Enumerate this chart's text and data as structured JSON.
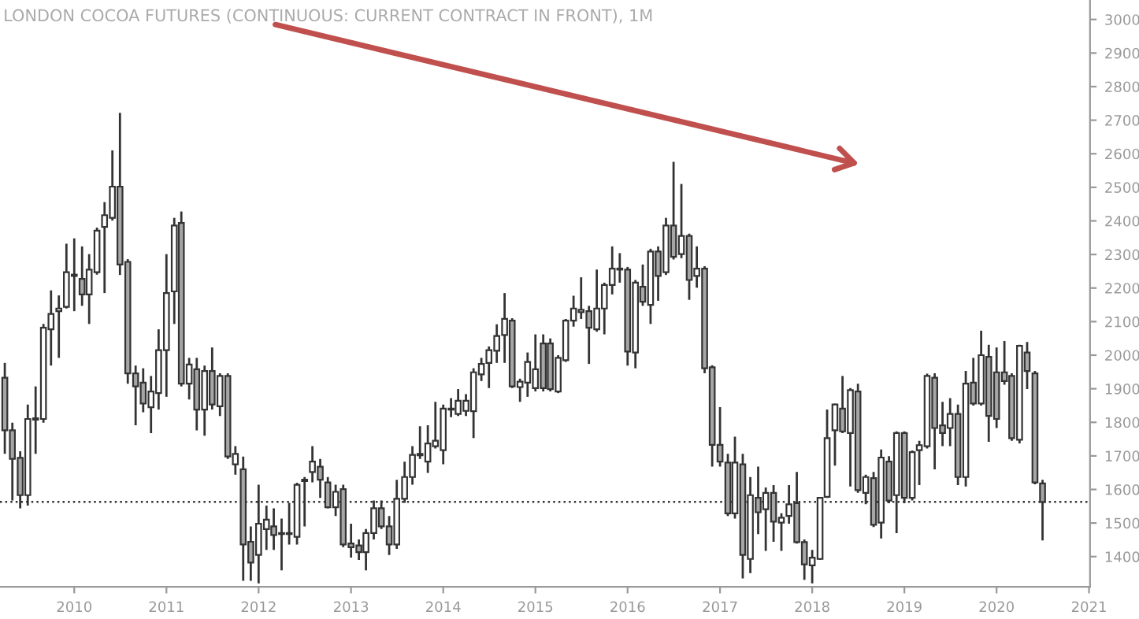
{
  "chart_data": {
    "type": "candlestick",
    "title": "LONDON COCOA FUTURES (CONTINUOUS: CURRENT CONTRACT IN FRONT), 1M",
    "x": [
      "2009-04",
      "2009-05",
      "2009-06",
      "2009-07",
      "2009-08",
      "2009-09",
      "2009-10",
      "2009-11",
      "2009-12",
      "2010-01",
      "2010-02",
      "2010-03",
      "2010-04",
      "2010-05",
      "2010-06",
      "2010-07",
      "2010-08",
      "2010-09",
      "2010-10",
      "2010-11",
      "2010-12",
      "2011-01",
      "2011-02",
      "2011-03",
      "2011-04",
      "2011-05",
      "2011-06",
      "2011-07",
      "2011-08",
      "2011-09",
      "2011-10",
      "2011-11",
      "2011-12",
      "2012-01",
      "2012-02",
      "2012-03",
      "2012-04",
      "2012-05",
      "2012-06",
      "2012-07",
      "2012-08",
      "2012-09",
      "2012-10",
      "2012-11",
      "2012-12",
      "2013-01",
      "2013-02",
      "2013-03",
      "2013-04",
      "2013-05",
      "2013-06",
      "2013-07",
      "2013-08",
      "2013-09",
      "2013-10",
      "2013-11",
      "2013-12",
      "2014-01",
      "2014-02",
      "2014-03",
      "2014-04",
      "2014-05",
      "2014-06",
      "2014-07",
      "2014-08",
      "2014-09",
      "2014-10",
      "2014-11",
      "2014-12",
      "2015-01",
      "2015-02",
      "2015-03",
      "2015-04",
      "2015-05",
      "2015-06",
      "2015-07",
      "2015-08",
      "2015-09",
      "2015-10",
      "2015-11",
      "2015-12",
      "2016-01",
      "2016-02",
      "2016-03",
      "2016-04",
      "2016-05",
      "2016-06",
      "2016-07",
      "2016-08",
      "2016-09",
      "2016-10",
      "2016-11",
      "2016-12",
      "2017-01",
      "2017-02",
      "2017-03",
      "2017-04",
      "2017-05",
      "2017-06",
      "2017-07",
      "2017-08",
      "2017-09",
      "2017-10",
      "2017-11",
      "2017-12",
      "2018-01",
      "2018-02",
      "2018-03",
      "2018-04",
      "2018-05",
      "2018-06",
      "2018-07",
      "2018-08",
      "2018-09",
      "2018-10",
      "2018-11",
      "2018-12",
      "2019-01",
      "2019-02",
      "2019-03",
      "2019-04",
      "2019-05",
      "2019-06",
      "2019-07",
      "2019-08",
      "2019-09",
      "2019-10",
      "2019-11",
      "2019-12",
      "2020-01",
      "2020-02",
      "2020-03",
      "2020-04",
      "2020-05",
      "2020-06",
      "2020-07"
    ],
    "ohlc": [
      [
        1933,
        1977,
        1706,
        1776
      ],
      [
        1776,
        1799,
        1567,
        1691
      ],
      [
        1694,
        1714,
        1544,
        1583
      ],
      [
        1583,
        1853,
        1552,
        1810
      ],
      [
        1808,
        1907,
        1706,
        1812
      ],
      [
        1810,
        2093,
        1799,
        2082
      ],
      [
        2077,
        2193,
        1969,
        2123
      ],
      [
        2131,
        2178,
        1992,
        2139
      ],
      [
        2144,
        2332,
        2139,
        2247
      ],
      [
        2240,
        2348,
        2131,
        2236
      ],
      [
        2227,
        2324,
        2147,
        2181
      ],
      [
        2181,
        2301,
        2093,
        2255
      ],
      [
        2247,
        2380,
        2240,
        2371
      ],
      [
        2382,
        2456,
        2185,
        2417
      ],
      [
        2409,
        2610,
        2401,
        2502
      ],
      [
        2502,
        2722,
        2239,
        2270
      ],
      [
        2278,
        2286,
        1915,
        1946
      ],
      [
        1946,
        1969,
        1791,
        1907
      ],
      [
        1918,
        1961,
        1830,
        1856
      ],
      [
        1845,
        1938,
        1768,
        1892
      ],
      [
        1887,
        2077,
        1838,
        2015
      ],
      [
        2015,
        2301,
        1876,
        2185
      ],
      [
        2190,
        2409,
        2093,
        2386
      ],
      [
        2394,
        2428,
        1907,
        1915
      ],
      [
        1915,
        1992,
        1868,
        1972
      ],
      [
        1958,
        1992,
        1776,
        1838
      ],
      [
        1838,
        1969,
        1760,
        1953
      ],
      [
        1953,
        2023,
        1838,
        1853
      ],
      [
        1848,
        1946,
        1819,
        1938
      ],
      [
        1938,
        1946,
        1691,
        1698
      ],
      [
        1675,
        1729,
        1644,
        1706
      ],
      [
        1660,
        1698,
        1328,
        1436
      ],
      [
        1444,
        1490,
        1328,
        1382
      ],
      [
        1405,
        1614,
        1320,
        1498
      ],
      [
        1482,
        1552,
        1420,
        1510
      ],
      [
        1490,
        1544,
        1420,
        1464
      ],
      [
        1470,
        1513,
        1359,
        1467
      ],
      [
        1467,
        1560,
        1436,
        1470
      ],
      [
        1459,
        1620,
        1436,
        1614
      ],
      [
        1625,
        1637,
        1490,
        1629
      ],
      [
        1652,
        1729,
        1621,
        1683
      ],
      [
        1668,
        1691,
        1575,
        1629
      ],
      [
        1621,
        1637,
        1544,
        1547
      ],
      [
        1547,
        1614,
        1521,
        1593
      ],
      [
        1601,
        1614,
        1428,
        1436
      ],
      [
        1439,
        1498,
        1397,
        1428
      ],
      [
        1433,
        1451,
        1390,
        1413
      ],
      [
        1413,
        1482,
        1359,
        1470
      ],
      [
        1470,
        1567,
        1451,
        1544
      ],
      [
        1544,
        1567,
        1482,
        1490
      ],
      [
        1490,
        1521,
        1405,
        1436
      ],
      [
        1436,
        1629,
        1423,
        1572
      ],
      [
        1572,
        1683,
        1560,
        1637
      ],
      [
        1637,
        1729,
        1614,
        1703
      ],
      [
        1702,
        1788,
        1691,
        1706
      ],
      [
        1683,
        1791,
        1649,
        1737
      ],
      [
        1729,
        1861,
        1722,
        1745
      ],
      [
        1717,
        1853,
        1675,
        1841
      ],
      [
        1838,
        1872,
        1815,
        1841
      ],
      [
        1825,
        1899,
        1819,
        1864
      ],
      [
        1834,
        1884,
        1819,
        1864
      ],
      [
        1833,
        1961,
        1753,
        1949
      ],
      [
        1943,
        1992,
        1923,
        1974
      ],
      [
        1977,
        2026,
        1902,
        2015
      ],
      [
        2013,
        2092,
        1977,
        2057
      ],
      [
        2060,
        2185,
        1977,
        2108
      ],
      [
        2103,
        2110,
        1902,
        1907
      ],
      [
        1905,
        1930,
        1861,
        1921
      ],
      [
        1918,
        2008,
        1876,
        1980
      ],
      [
        1902,
        2062,
        1892,
        1958
      ],
      [
        2035,
        2062,
        1892,
        1902
      ],
      [
        2035,
        2050,
        1892,
        1899
      ],
      [
        1892,
        2000,
        1887,
        1992
      ],
      [
        1985,
        2108,
        1980,
        2103
      ],
      [
        2103,
        2177,
        2085,
        2139
      ],
      [
        2128,
        2232,
        2108,
        2135
      ],
      [
        2131,
        2147,
        1974,
        2082
      ],
      [
        2077,
        2255,
        2070,
        2139
      ],
      [
        2139,
        2216,
        2062,
        2209
      ],
      [
        2209,
        2324,
        2181,
        2258
      ],
      [
        2258,
        2304,
        2216,
        2255
      ],
      [
        2255,
        2263,
        1969,
        2011
      ],
      [
        2008,
        2224,
        1961,
        2216
      ],
      [
        2204,
        2270,
        2147,
        2159
      ],
      [
        2150,
        2317,
        2093,
        2309
      ],
      [
        2309,
        2324,
        2162,
        2236
      ],
      [
        2247,
        2409,
        2239,
        2386
      ],
      [
        2386,
        2576,
        2285,
        2293
      ],
      [
        2301,
        2510,
        2289,
        2355
      ],
      [
        2355,
        2362,
        2165,
        2224
      ],
      [
        2236,
        2324,
        2201,
        2258
      ],
      [
        2258,
        2265,
        1946,
        1961
      ],
      [
        1964,
        1970,
        1668,
        1733
      ],
      [
        1733,
        1845,
        1668,
        1683
      ],
      [
        1680,
        1706,
        1521,
        1529
      ],
      [
        1529,
        1757,
        1513,
        1680
      ],
      [
        1675,
        1706,
        1335,
        1405
      ],
      [
        1393,
        1637,
        1351,
        1583
      ],
      [
        1575,
        1668,
        1467,
        1532
      ],
      [
        1541,
        1606,
        1417,
        1590
      ],
      [
        1590,
        1613,
        1444,
        1504
      ],
      [
        1501,
        1529,
        1417,
        1516
      ],
      [
        1521,
        1613,
        1498,
        1556
      ],
      [
        1559,
        1652,
        1439,
        1443
      ],
      [
        1443,
        1451,
        1331,
        1377
      ],
      [
        1374,
        1420,
        1320,
        1397
      ],
      [
        1393,
        1578,
        1390,
        1575
      ],
      [
        1578,
        1838,
        1575,
        1753
      ],
      [
        1776,
        1856,
        1671,
        1853
      ],
      [
        1841,
        1938,
        1768,
        1773
      ],
      [
        1768,
        1902,
        1609,
        1896
      ],
      [
        1892,
        1915,
        1590,
        1598
      ],
      [
        1590,
        1644,
        1556,
        1637
      ],
      [
        1634,
        1652,
        1488,
        1495
      ],
      [
        1501,
        1719,
        1454,
        1695
      ],
      [
        1683,
        1699,
        1559,
        1567
      ],
      [
        1583,
        1773,
        1470,
        1768
      ],
      [
        1768,
        1773,
        1559,
        1575
      ],
      [
        1575,
        1716,
        1567,
        1711
      ],
      [
        1717,
        1745,
        1613,
        1732
      ],
      [
        1729,
        1945,
        1722,
        1938
      ],
      [
        1933,
        1946,
        1660,
        1783
      ],
      [
        1791,
        1861,
        1729,
        1768
      ],
      [
        1783,
        1872,
        1729,
        1825
      ],
      [
        1825,
        1853,
        1613,
        1637
      ],
      [
        1637,
        1953,
        1609,
        1915
      ],
      [
        1918,
        1992,
        1850,
        1856
      ],
      [
        1856,
        2073,
        1850,
        2000
      ],
      [
        1995,
        2031,
        1742,
        1819
      ],
      [
        1949,
        2023,
        1783,
        1810
      ],
      [
        1949,
        2042,
        1912,
        1923
      ],
      [
        1938,
        1946,
        1745,
        1753
      ],
      [
        1748,
        2031,
        1737,
        2028
      ],
      [
        2008,
        2039,
        1899,
        1953
      ],
      [
        1946,
        1953,
        1615,
        1621
      ],
      [
        1618,
        1629,
        1448,
        1563
      ]
    ],
    "colors": [
      "#a6a6a6",
      "#a6a6a6",
      "#a6a6a6",
      "#ffffff",
      "#ffffff",
      "#ffffff",
      "#ffffff",
      "#ffffff",
      "#ffffff",
      "#a6a6a6",
      "#a6a6a6",
      "#ffffff",
      "#ffffff",
      "#ffffff",
      "#ffffff",
      "#a6a6a6",
      "#a6a6a6",
      "#a6a6a6",
      "#a6a6a6",
      "#ffffff",
      "#ffffff",
      "#ffffff",
      "#ffffff",
      "#a6a6a6",
      "#ffffff",
      "#a6a6a6",
      "#ffffff",
      "#a6a6a6",
      "#ffffff",
      "#a6a6a6",
      "#ffffff",
      "#a6a6a6",
      "#a6a6a6",
      "#ffffff",
      "#ffffff",
      "#a6a6a6",
      "#a6a6a6",
      "#ffffff",
      "#ffffff",
      "#ffffff",
      "#ffffff",
      "#a6a6a6",
      "#a6a6a6",
      "#ffffff",
      "#a6a6a6",
      "#a6a6a6",
      "#a6a6a6",
      "#ffffff",
      "#ffffff",
      "#a6a6a6",
      "#a6a6a6",
      "#ffffff",
      "#ffffff",
      "#ffffff",
      "#ffffff",
      "#ffffff",
      "#ffffff",
      "#ffffff",
      "#ffffff",
      "#ffffff",
      "#ffffff",
      "#ffffff",
      "#ffffff",
      "#ffffff",
      "#ffffff",
      "#ffffff",
      "#a6a6a6",
      "#ffffff",
      "#ffffff",
      "#ffffff",
      "#a6a6a6",
      "#a6a6a6",
      "#ffffff",
      "#ffffff",
      "#ffffff",
      "#ffffff",
      "#a6a6a6",
      "#ffffff",
      "#ffffff",
      "#ffffff",
      "#a6a6a6",
      "#a6a6a6",
      "#ffffff",
      "#a6a6a6",
      "#ffffff",
      "#a6a6a6",
      "#ffffff",
      "#a6a6a6",
      "#ffffff",
      "#a6a6a6",
      "#ffffff",
      "#a6a6a6",
      "#a6a6a6",
      "#a6a6a6",
      "#a6a6a6",
      "#ffffff",
      "#a6a6a6",
      "#ffffff",
      "#a6a6a6",
      "#ffffff",
      "#a6a6a6",
      "#ffffff",
      "#ffffff",
      "#a6a6a6",
      "#a6a6a6",
      "#ffffff",
      "#ffffff",
      "#ffffff",
      "#ffffff",
      "#a6a6a6",
      "#ffffff",
      "#a6a6a6",
      "#ffffff",
      "#a6a6a6",
      "#ffffff",
      "#a6a6a6",
      "#ffffff",
      "#a6a6a6",
      "#ffffff",
      "#ffffff",
      "#ffffff",
      "#a6a6a6",
      "#a6a6a6",
      "#ffffff",
      "#a6a6a6",
      "#ffffff",
      "#a6a6a6",
      "#ffffff",
      "#a6a6a6",
      "#a6a6a6",
      "#a6a6a6",
      "#a6a6a6",
      "#ffffff",
      "#a6a6a6",
      "#a6a6a6",
      "#a6a6a6"
    ],
    "xlim": [
      "2009-03-13",
      "2021-01-05"
    ],
    "xticks": [
      "2010",
      "2011",
      "2012",
      "2013",
      "2014",
      "2015",
      "2016",
      "2017",
      "2018",
      "2019",
      "2020",
      "2021"
    ],
    "ylim": [
      1310,
      3058
    ],
    "yticks": [
      1400,
      1500,
      1600,
      1700,
      1800,
      1900,
      2000,
      2100,
      2200,
      2300,
      2400,
      2500,
      2600,
      2700,
      2800,
      2900,
      3000
    ],
    "ref_lines": [
      {
        "axis": "y",
        "value": 1563,
        "color": "#333333",
        "line_style": "dotted"
      }
    ],
    "grid": false
  }
}
